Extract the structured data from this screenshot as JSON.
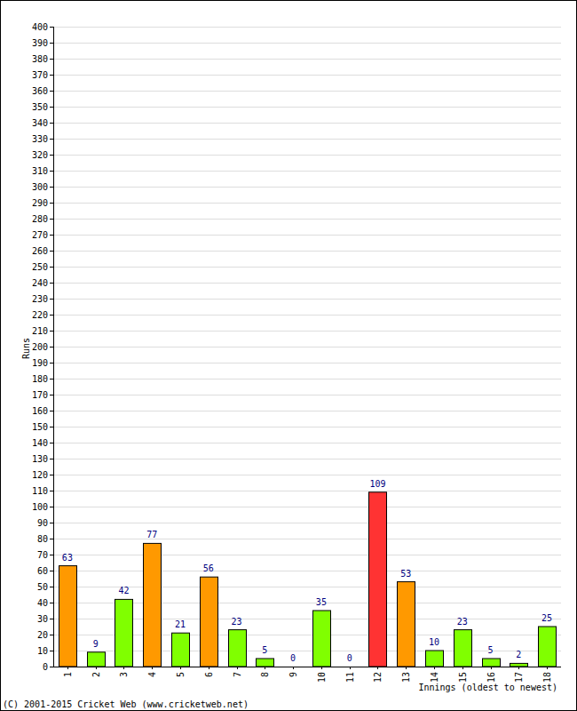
{
  "chart_data": {
    "type": "bar",
    "y_label": "Runs",
    "x_label": "Innings (oldest to newest)",
    "annotations": [
      "(C) 2001-2015 Cricket Web (www.cricketweb.net)"
    ],
    "categories": [
      "1",
      "2",
      "3",
      "4",
      "5",
      "6",
      "7",
      "8",
      "9",
      "10",
      "11",
      "12",
      "13",
      "14",
      "15",
      "16",
      "17",
      "18"
    ],
    "values": [
      63,
      9,
      42,
      77,
      21,
      56,
      23,
      5,
      0,
      35,
      0,
      109,
      53,
      10,
      23,
      5,
      2,
      25
    ],
    "colors": [
      "#ff9900",
      "#80ff00",
      "#80ff00",
      "#ff9900",
      "#80ff00",
      "#ff9900",
      "#80ff00",
      "#80ff00",
      "#80ff00",
      "#80ff00",
      "#80ff00",
      "#ff3333",
      "#ff9900",
      "#80ff00",
      "#80ff00",
      "#80ff00",
      "#80ff00",
      "#80ff00"
    ],
    "ylim": [
      0,
      400
    ],
    "yticks": [
      0,
      10,
      20,
      30,
      40,
      50,
      60,
      70,
      80,
      90,
      100,
      110,
      120,
      130,
      140,
      150,
      160,
      170,
      180,
      190,
      200,
      210,
      220,
      230,
      240,
      250,
      260,
      270,
      280,
      290,
      300,
      310,
      320,
      330,
      340,
      350,
      360,
      370,
      380,
      390,
      400
    ],
    "grid": true,
    "data_labels": true
  }
}
